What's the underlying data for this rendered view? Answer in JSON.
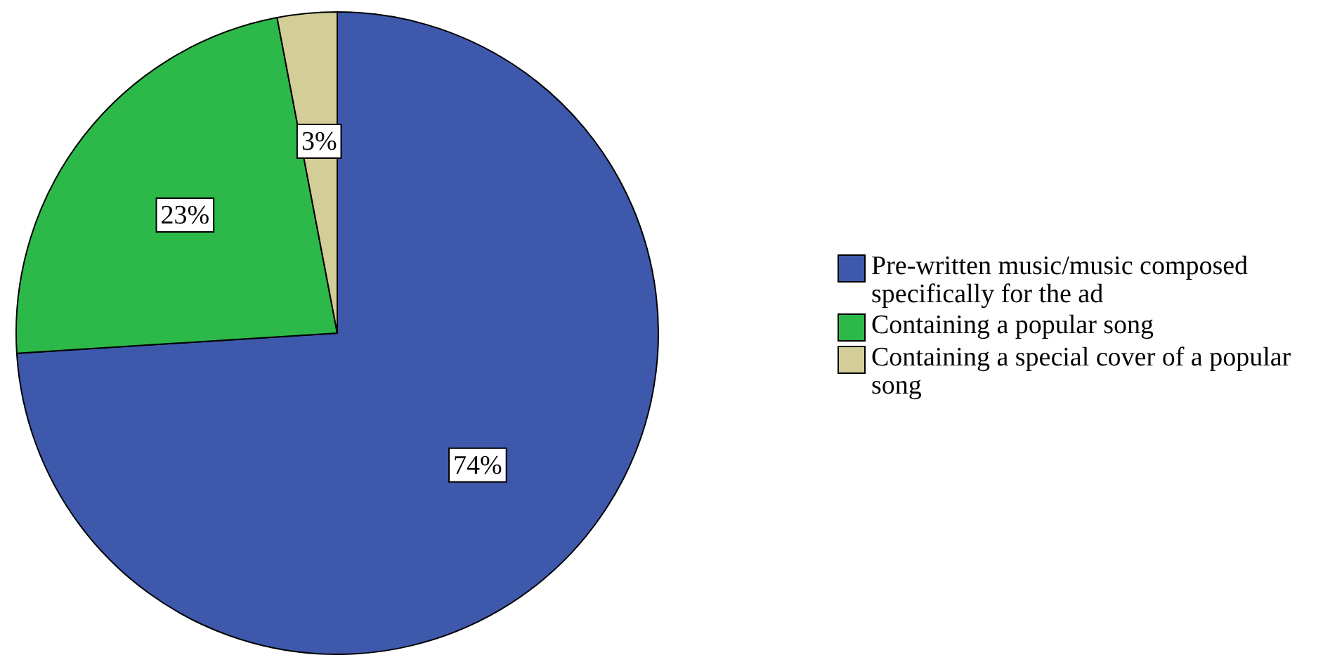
{
  "chart_data": {
    "type": "pie",
    "categories": [
      "Pre-written music/music composed specifically for the ad",
      "Containing a popular song",
      "Containing a special cover of a popular song"
    ],
    "values": [
      74,
      23,
      3
    ],
    "colors": [
      "#3e58ac",
      "#2db84a",
      "#d3cd97"
    ],
    "value_labels": [
      "74%",
      "23%",
      "3%"
    ],
    "legend": "right"
  }
}
